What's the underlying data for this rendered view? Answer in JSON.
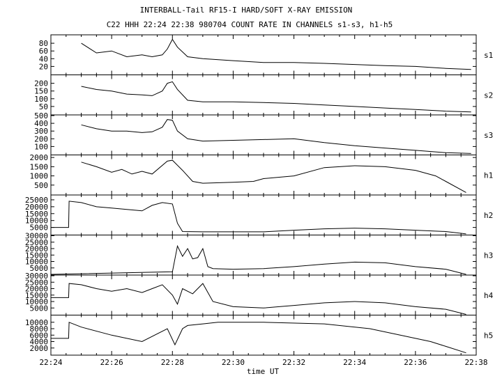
{
  "chart_data": {
    "type": "line",
    "title": "INTERBALL-Tail RF15-I HARD/SOFT X-RAY EMISSION",
    "subtitle": "C22 HHH 22:24 22:38 980704  COUNT RATE IN CHANNELS s1-s3, h1-h5",
    "xlabel": "time UT",
    "xlim": [
      "22:24",
      "22:38"
    ],
    "x_ticks": [
      "22:24",
      "22:26",
      "22:28",
      "22:30",
      "22:32",
      "22:34",
      "22:36",
      "22:38"
    ],
    "grid": false,
    "line_color": "#000000",
    "panels": [
      {
        "name": "s1",
        "ylim": [
          0,
          100
        ],
        "yticks": [
          20,
          40,
          60,
          80
        ],
        "ytick_labels": [
          "20",
          "40",
          "60",
          "80"
        ],
        "x": [
          "22:25:00",
          "22:25:30",
          "22:26:00",
          "22:26:30",
          "22:27:00",
          "22:27:20",
          "22:27:40",
          "22:27:50",
          "22:28:00",
          "22:28:10",
          "22:28:30",
          "22:29:00",
          "22:30:00",
          "22:31:00",
          "22:32:00",
          "22:33:00",
          "22:34:00",
          "22:35:00",
          "22:36:00",
          "22:37:00",
          "22:37:50"
        ],
        "y": [
          80,
          55,
          60,
          45,
          50,
          45,
          50,
          65,
          90,
          70,
          45,
          40,
          35,
          30,
          30,
          28,
          25,
          22,
          20,
          15,
          12
        ]
      },
      {
        "name": "s2",
        "ylim": [
          0,
          250
        ],
        "yticks": [
          50,
          100,
          150,
          200
        ],
        "ytick_labels": [
          "50",
          "100",
          "150",
          "200"
        ],
        "x": [
          "22:25:00",
          "22:25:30",
          "22:26:00",
          "22:26:30",
          "22:27:00",
          "22:27:20",
          "22:27:40",
          "22:27:50",
          "22:28:00",
          "22:28:10",
          "22:28:30",
          "22:29:00",
          "22:30:00",
          "22:31:00",
          "22:32:00",
          "22:33:00",
          "22:34:00",
          "22:35:00",
          "22:36:00",
          "22:37:00",
          "22:37:50"
        ],
        "y": [
          180,
          160,
          150,
          130,
          125,
          120,
          150,
          200,
          210,
          160,
          90,
          80,
          80,
          75,
          70,
          60,
          50,
          40,
          30,
          20,
          15
        ]
      },
      {
        "name": "s3",
        "ylim": [
          0,
          500
        ],
        "yticks": [
          100,
          200,
          300,
          400,
          500
        ],
        "ytick_labels": [
          "100",
          "200",
          "300",
          "400",
          "500"
        ],
        "x": [
          "22:25:00",
          "22:25:30",
          "22:26:00",
          "22:26:30",
          "22:27:00",
          "22:27:20",
          "22:27:40",
          "22:27:50",
          "22:28:00",
          "22:28:10",
          "22:28:30",
          "22:29:00",
          "22:30:00",
          "22:31:00",
          "22:32:00",
          "22:33:00",
          "22:34:00",
          "22:35:00",
          "22:36:00",
          "22:37:00",
          "22:37:50"
        ],
        "y": [
          380,
          330,
          300,
          300,
          280,
          290,
          350,
          450,
          440,
          300,
          200,
          170,
          180,
          190,
          200,
          150,
          110,
          80,
          50,
          20,
          10
        ]
      },
      {
        "name": "h1",
        "ylim": [
          0,
          2100
        ],
        "yticks": [
          500,
          1000,
          1500,
          2000
        ],
        "ytick_labels": [
          "500",
          "1000",
          "1500",
          "2000"
        ],
        "x": [
          "22:25:00",
          "22:25:30",
          "22:26:00",
          "22:26:20",
          "22:26:40",
          "22:27:00",
          "22:27:20",
          "22:27:50",
          "22:28:00",
          "22:28:20",
          "22:28:40",
          "22:29:00",
          "22:30:00",
          "22:30:40",
          "22:31:00",
          "22:32:00",
          "22:33:00",
          "22:34:00",
          "22:35:00",
          "22:36:00",
          "22:36:40",
          "22:37:00",
          "22:37:40"
        ],
        "y": [
          1750,
          1500,
          1200,
          1350,
          1100,
          1250,
          1100,
          1800,
          1850,
          1300,
          700,
          600,
          650,
          700,
          850,
          1000,
          1450,
          1550,
          1500,
          1300,
          1000,
          700,
          100
        ]
      },
      {
        "name": "h2",
        "ylim": [
          0,
          28000
        ],
        "yticks": [
          5000,
          10000,
          15000,
          20000,
          25000
        ],
        "ytick_labels": [
          "5000",
          "10000",
          "15000",
          "20000",
          "25000"
        ],
        "x": [
          "22:24:00",
          "22:24:35",
          "22:24:36",
          "22:25:00",
          "22:25:30",
          "22:26:00",
          "22:26:30",
          "22:27:00",
          "22:27:20",
          "22:27:40",
          "22:28:00",
          "22:28:10",
          "22:28:20",
          "22:29:00",
          "22:30:00",
          "22:31:00",
          "22:32:00",
          "22:33:00",
          "22:34:00",
          "22:35:00",
          "22:36:00",
          "22:37:00",
          "22:37:40"
        ],
        "y": [
          5000,
          5000,
          24000,
          23000,
          20000,
          19000,
          18000,
          17000,
          21000,
          23000,
          22000,
          8000,
          2000,
          1800,
          1800,
          1800,
          3000,
          4000,
          4500,
          4000,
          3000,
          2000,
          300
        ]
      },
      {
        "name": "h3",
        "ylim": [
          0,
          30000
        ],
        "yticks": [
          5000,
          10000,
          15000,
          20000,
          25000,
          30000
        ],
        "ytick_labels": [
          "5000",
          "10000",
          "15000",
          "20000",
          "25000",
          "30000"
        ],
        "x": [
          "22:24:00",
          "22:28:00",
          "22:28:10",
          "22:28:20",
          "22:28:30",
          "22:28:40",
          "22:28:50",
          "22:29:00",
          "22:29:10",
          "22:29:20",
          "22:30:00",
          "22:31:00",
          "22:32:00",
          "22:33:00",
          "22:34:00",
          "22:35:00",
          "22:36:00",
          "22:37:00",
          "22:37:40"
        ],
        "y": [
          0,
          2000,
          22000,
          14000,
          20000,
          12000,
          13000,
          20000,
          6000,
          4500,
          4000,
          4500,
          6000,
          8000,
          9500,
          9000,
          6000,
          4000,
          0
        ]
      },
      {
        "name": "h4",
        "ylim": [
          0,
          30000
        ],
        "yticks": [
          5000,
          10000,
          15000,
          20000,
          25000,
          30000
        ],
        "ytick_labels": [
          "5000",
          "10000",
          "15000",
          "20000",
          "25000",
          "30000"
        ],
        "x": [
          "22:24:00",
          "22:24:35",
          "22:24:36",
          "22:25:00",
          "22:25:30",
          "22:26:00",
          "22:26:30",
          "22:27:00",
          "22:27:20",
          "22:27:40",
          "22:28:00",
          "22:28:10",
          "22:28:20",
          "22:28:40",
          "22:29:00",
          "22:29:20",
          "22:30:00",
          "22:31:00",
          "22:32:00",
          "22:33:00",
          "22:34:00",
          "22:35:00",
          "22:36:00",
          "22:37:00",
          "22:37:40"
        ],
        "y": [
          13000,
          13000,
          24000,
          23000,
          20000,
          18000,
          20000,
          17000,
          20000,
          23000,
          15000,
          8000,
          20000,
          16000,
          24000,
          10000,
          6000,
          5000,
          7000,
          9000,
          10000,
          9000,
          6000,
          4000,
          0
        ]
      },
      {
        "name": "h5",
        "ylim": [
          0,
          12000
        ],
        "yticks": [
          2000,
          4000,
          6000,
          8000,
          10000
        ],
        "ytick_labels": [
          "2000",
          "4000",
          "6000",
          "8000",
          "10000"
        ],
        "x": [
          "22:24:00",
          "22:24:35",
          "22:24:36",
          "22:25:00",
          "22:26:00",
          "22:27:00",
          "22:27:50",
          "22:28:05",
          "22:28:20",
          "22:28:30",
          "22:29:00",
          "22:29:30",
          "22:31:00",
          "22:33:00",
          "22:34:30",
          "22:35:30",
          "22:36:30",
          "22:37:00",
          "22:37:40"
        ],
        "y": [
          5000,
          5000,
          10000,
          8500,
          6000,
          4000,
          8000,
          3000,
          8000,
          9000,
          9500,
          10000,
          10000,
          9500,
          8000,
          6000,
          4000,
          2500,
          500
        ]
      }
    ]
  }
}
